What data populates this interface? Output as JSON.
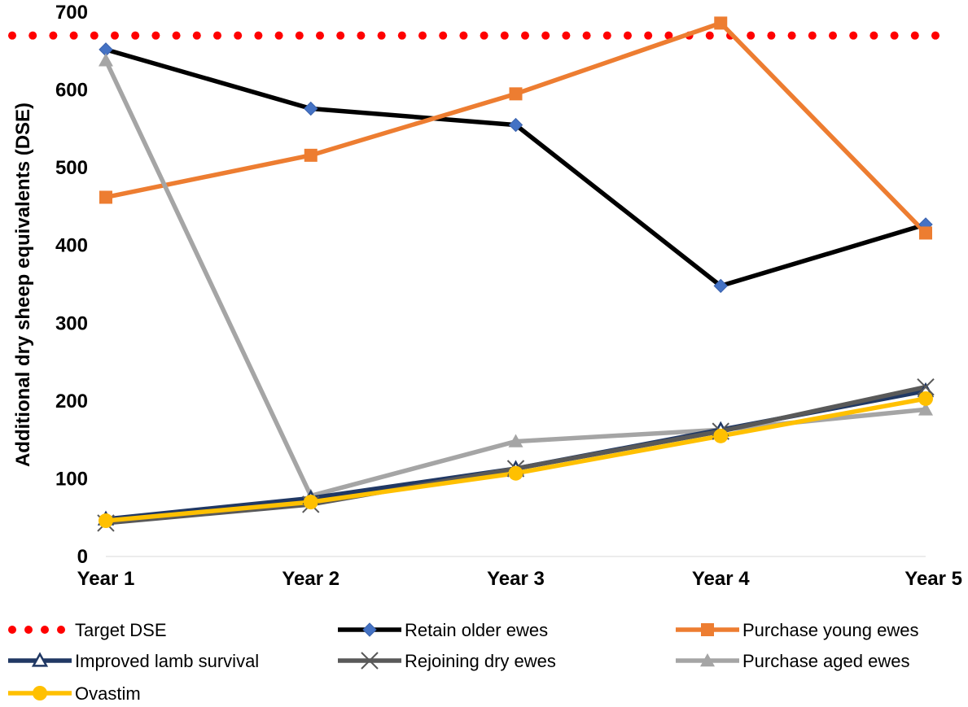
{
  "chart_data": {
    "type": "line",
    "title": "",
    "xlabel": "",
    "ylabel": "Additional dry sheep equivalents (DSE)",
    "ylim": [
      0,
      700
    ],
    "y_ticks": [
      "0",
      "100",
      "200",
      "300",
      "400",
      "500",
      "600",
      "700"
    ],
    "categories": [
      "Year 1",
      "Year 2",
      "Year 3",
      "Year 4",
      "Year 5"
    ],
    "grid": false,
    "legend_position": "bottom",
    "series": [
      {
        "name": "Target DSE",
        "values": [
          670,
          670,
          670,
          670,
          670
        ],
        "color": "#ff0000",
        "style": "dotted",
        "marker": "none"
      },
      {
        "name": "Retain older ewes",
        "values": [
          652,
          576,
          555,
          348,
          427
        ],
        "color": "#000000",
        "style": "solid",
        "marker": "diamond",
        "marker_color": "#4472c4"
      },
      {
        "name": "Purchase young ewes",
        "values": [
          462,
          516,
          595,
          686,
          416
        ],
        "color": "#ed7d31",
        "style": "solid",
        "marker": "square",
        "marker_color": "#ed7d31"
      },
      {
        "name": "Improved lamb survival",
        "values": [
          48,
          75,
          113,
          163,
          213
        ],
        "color": "#203864",
        "style": "solid",
        "marker": "triangle-open",
        "marker_color": "#203864"
      },
      {
        "name": "Rejoining dry ewes",
        "values": [
          43,
          67,
          113,
          161,
          218
        ],
        "color": "#595959",
        "style": "solid",
        "marker": "x",
        "marker_color": "#595959"
      },
      {
        "name": "Purchase aged ewes",
        "values": [
          638,
          78,
          148,
          163,
          189
        ],
        "color": "#a5a5a5",
        "style": "solid",
        "marker": "triangle",
        "marker_color": "#a5a5a5"
      },
      {
        "name": "Ovastim",
        "values": [
          46,
          70,
          107,
          155,
          203
        ],
        "color": "#ffc000",
        "style": "solid",
        "marker": "circle",
        "marker_color": "#ffc000"
      }
    ]
  }
}
